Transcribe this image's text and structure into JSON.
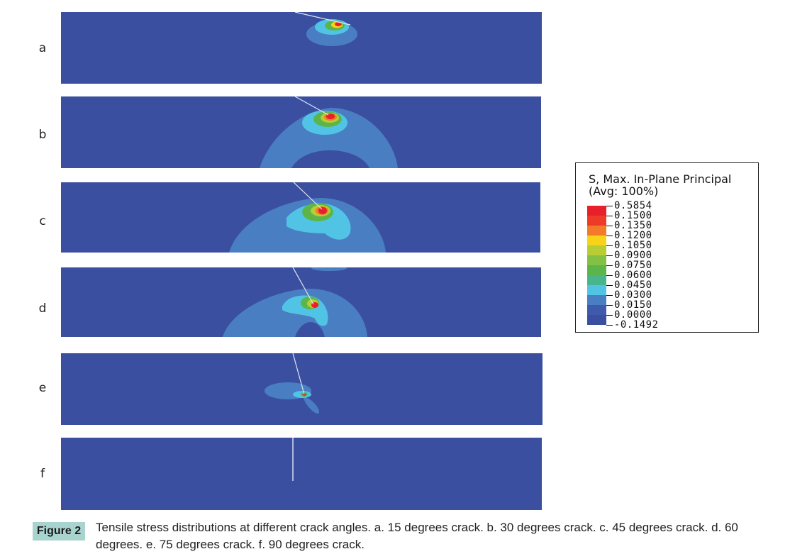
{
  "panels": [
    {
      "label": "a"
    },
    {
      "label": "b"
    },
    {
      "label": "c"
    },
    {
      "label": "d"
    },
    {
      "label": "e"
    },
    {
      "label": "f"
    }
  ],
  "legend": {
    "title_line1": "S, Max. In-Plane Principal",
    "title_line2": "(Avg:  100%)",
    "ticks": [
      "0.5854",
      "0.1500",
      "0.1350",
      "0.1200",
      "0.1050",
      "0.0900",
      "0.0750",
      "0.0600",
      "0.0450",
      "0.0300",
      "0.0150",
      "0.0000",
      "-0.1492"
    ],
    "colors": [
      "#e8202a",
      "#ee3a28",
      "#f27a2a",
      "#f7d31a",
      "#b7cd33",
      "#83c043",
      "#5bb548",
      "#48b58c",
      "#51c4e6",
      "#4a7ec3",
      "#3f5aaa",
      "#3b4fa0"
    ]
  },
  "colors": {
    "background": "#3b4fa0",
    "cyan": "#51c4e6",
    "blue_mid": "#4a7ec3",
    "green": "#5bb548",
    "yellow_green": "#b7cd33",
    "red": "#e8202a",
    "badge": "#a9d3cf"
  },
  "caption": {
    "badge": "Figure 2",
    "text": "Tensile stress distributions at different crack angles. a. 15 degrees crack. b. 30 degrees crack. c. 45 degrees crack. d. 60 degrees. e. 75 degrees crack. f. 90 degrees crack."
  }
}
